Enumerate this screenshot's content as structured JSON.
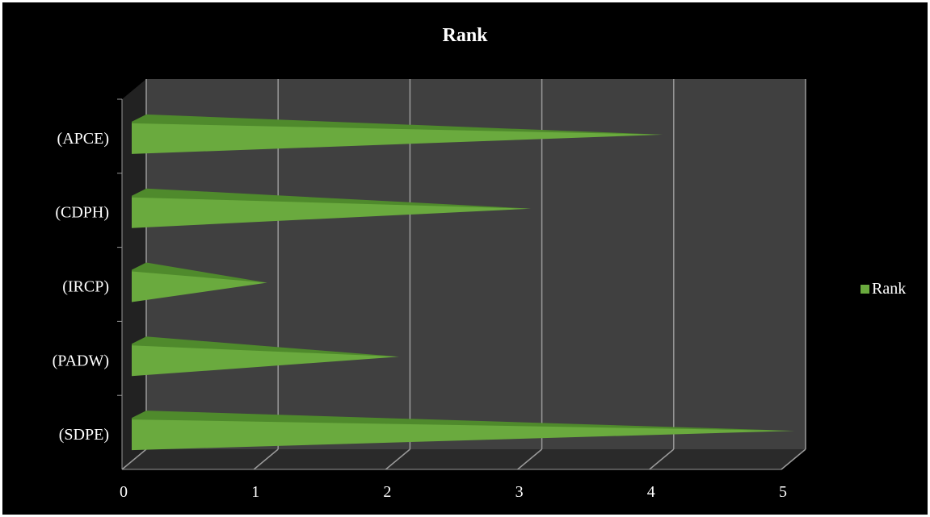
{
  "chart_data": {
    "type": "bar",
    "orientation": "horizontal",
    "style": "3d-cone",
    "title": "Rank",
    "categories": [
      "(APCE)",
      "(CDPH)",
      "(IRCP)",
      "(PADW)",
      "(SDPE)"
    ],
    "series": [
      {
        "name": "Rank",
        "values": [
          4,
          3,
          1,
          2,
          5
        ]
      }
    ],
    "x_ticks": [
      "0",
      "1",
      "2",
      "3",
      "4",
      "5"
    ],
    "xlim": [
      0,
      5
    ],
    "grid": true,
    "legend_position": "right",
    "colors": {
      "background": "#000000",
      "plot_wall": "#404040",
      "floor": "#2a2a2a",
      "bar": "#6aaa3e",
      "bar_top": "#4f8a2c",
      "grid": "#9a9a9a",
      "text": "#ffffff"
    }
  }
}
